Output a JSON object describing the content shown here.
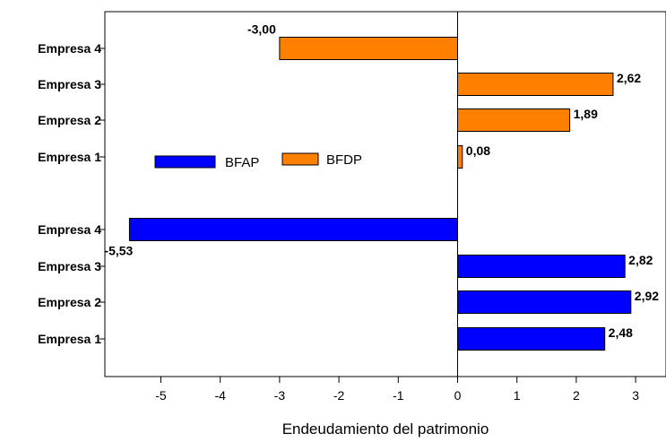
{
  "chart_data": {
    "type": "bar",
    "orientation": "horizontal",
    "xlabel": "Endeudamiento del patrimonio",
    "ylabel": "",
    "xlim": [
      -6,
      3.5
    ],
    "xticks": [
      "-5",
      "-4",
      "-3",
      "-2",
      "-1",
      "0",
      "1",
      "2",
      "3"
    ],
    "grid": false,
    "legend_position": "center-left",
    "groups": [
      {
        "name": "BFDP",
        "color": "#ff8000",
        "categories": [
          "Empresa 4",
          "Empresa 3",
          "Empresa 2",
          "Empresa 1"
        ],
        "values": [
          -3.0,
          2.62,
          1.89,
          0.08
        ],
        "value_labels": [
          "-3,00",
          "2,62",
          "1,89",
          "0,08"
        ]
      },
      {
        "name": "BFAP",
        "color": "#0000ff",
        "categories": [
          "Empresa 4",
          "Empresa 3",
          "Empresa 2",
          "Empresa 1"
        ],
        "values": [
          -5.53,
          2.82,
          2.92,
          2.48
        ],
        "value_labels": [
          "-5,53",
          "2,82",
          "2,92",
          "2,48"
        ]
      }
    ],
    "legend": [
      {
        "name": "BFAP",
        "color": "#0000ff"
      },
      {
        "name": "BFDP",
        "color": "#ff8000"
      }
    ]
  }
}
